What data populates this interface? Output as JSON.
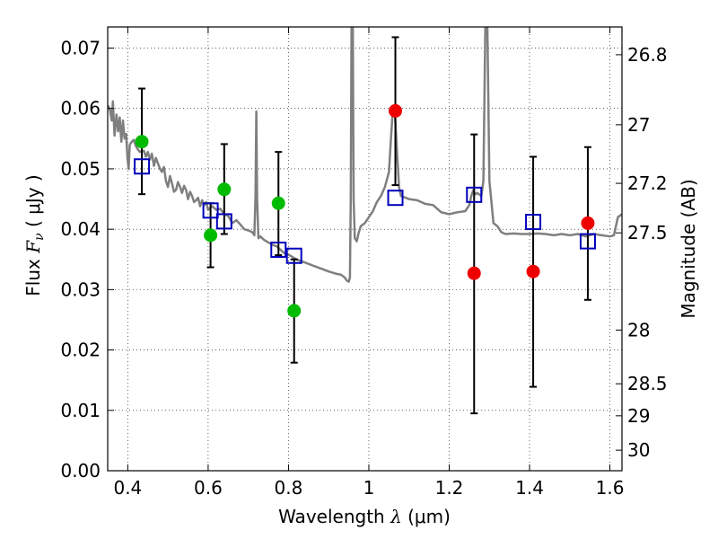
{
  "chart_data": {
    "type": "scatter",
    "xlabel": "Wavelength",
    "xlabel_symbol": "λ",
    "xlabel_unit": "(μm)",
    "ylabel": "Flux",
    "ylabel_symbol": "F",
    "ylabel_symbol_sub": "ν",
    "ylabel_unit": "( μJy )",
    "y2label": "Magnitude (AB)",
    "xlim": [
      0.35,
      1.63
    ],
    "ylim": [
      0.0,
      0.0735
    ],
    "grid": true,
    "grid_style": "dotted",
    "x_ticks": [
      0.4,
      0.6,
      0.8,
      1.0,
      1.2,
      1.4,
      1.6
    ],
    "x_tick_labels": [
      "0.4",
      "0.6",
      "0.8",
      "1",
      "1.2",
      "1.4",
      "1.6"
    ],
    "y_ticks": [
      0.0,
      0.01,
      0.02,
      0.03,
      0.04,
      0.05,
      0.06,
      0.07
    ],
    "y_tick_labels": [
      "0.00",
      "0.01",
      "0.02",
      "0.03",
      "0.04",
      "0.05",
      "0.06",
      "0.07"
    ],
    "y2_ticks": [
      {
        "flux": 0.0689,
        "label": "26.8"
      },
      {
        "flux": 0.0573,
        "label": "27"
      },
      {
        "flux": 0.0476,
        "label": "27.2"
      },
      {
        "flux": 0.0394,
        "label": "27.5"
      },
      {
        "flux": 0.0233,
        "label": "28"
      },
      {
        "flux": 0.0144,
        "label": "28.5"
      },
      {
        "flux": 0.0091,
        "label": "29"
      },
      {
        "flux": 0.0034,
        "label": "30"
      }
    ],
    "colors": {
      "model": "#7f7f7f",
      "green_points": "#00bb00",
      "red_points": "#ee0000",
      "model_squares": "#0000bb",
      "errorbars": "#000000"
    },
    "series": [
      {
        "marker": "circle",
        "color": "#00bb00",
        "points": [
          {
            "x": 0.435,
            "y": 0.0545,
            "err_low": 0.0458,
            "err_high": 0.0633
          },
          {
            "x": 0.606,
            "y": 0.039,
            "err_low": 0.0337,
            "err_high": 0.0443
          },
          {
            "x": 0.64,
            "y": 0.0466,
            "err_low": 0.0392,
            "err_high": 0.0541
          },
          {
            "x": 0.775,
            "y": 0.0443,
            "err_low": 0.0357,
            "err_high": 0.0528
          },
          {
            "x": 0.814,
            "y": 0.0265,
            "err_low": 0.0179,
            "err_high": 0.035
          }
        ]
      },
      {
        "marker": "circle",
        "color": "#ee0000",
        "points": [
          {
            "x": 1.066,
            "y": 0.0596,
            "err_low": 0.0473,
            "err_high": 0.0718
          },
          {
            "x": 1.262,
            "y": 0.0327,
            "err_low": 0.0095,
            "err_high": 0.0557
          },
          {
            "x": 1.409,
            "y": 0.033,
            "err_low": 0.0139,
            "err_high": 0.052
          },
          {
            "x": 1.545,
            "y": 0.041,
            "err_low": 0.0283,
            "err_high": 0.0536
          }
        ]
      },
      {
        "marker": "square",
        "color": "#0000bb",
        "points": [
          {
            "x": 0.435,
            "y": 0.0504
          },
          {
            "x": 0.606,
            "y": 0.0431
          },
          {
            "x": 0.64,
            "y": 0.0413
          },
          {
            "x": 0.775,
            "y": 0.0366
          },
          {
            "x": 0.814,
            "y": 0.0356
          },
          {
            "x": 1.066,
            "y": 0.0452
          },
          {
            "x": 1.262,
            "y": 0.0457
          },
          {
            "x": 1.409,
            "y": 0.0412
          },
          {
            "x": 1.545,
            "y": 0.038
          }
        ]
      },
      {
        "marker": "line",
        "color": "#7f7f7f",
        "points": [
          [
            0.35,
            0.0605
          ],
          [
            0.355,
            0.06
          ],
          [
            0.36,
            0.058
          ],
          [
            0.363,
            0.0612
          ],
          [
            0.367,
            0.0555
          ],
          [
            0.372,
            0.059
          ],
          [
            0.376,
            0.0562
          ],
          [
            0.38,
            0.0585
          ],
          [
            0.384,
            0.0545
          ],
          [
            0.388,
            0.058
          ],
          [
            0.392,
            0.055
          ],
          [
            0.396,
            0.0558
          ],
          [
            0.399,
            0.052
          ],
          [
            0.402,
            0.05
          ],
          [
            0.405,
            0.054
          ],
          [
            0.41,
            0.0545
          ],
          [
            0.415,
            0.0548
          ],
          [
            0.42,
            0.0538
          ],
          [
            0.425,
            0.0532
          ],
          [
            0.43,
            0.0528
          ],
          [
            0.44,
            0.053
          ],
          [
            0.445,
            0.052
          ],
          [
            0.45,
            0.0528
          ],
          [
            0.455,
            0.0515
          ],
          [
            0.46,
            0.0525
          ],
          [
            0.465,
            0.0505
          ],
          [
            0.47,
            0.0518
          ],
          [
            0.48,
            0.05
          ],
          [
            0.485,
            0.0495
          ],
          [
            0.49,
            0.0503
          ],
          [
            0.495,
            0.048
          ],
          [
            0.5,
            0.047
          ],
          [
            0.505,
            0.0488
          ],
          [
            0.51,
            0.0476
          ],
          [
            0.515,
            0.0462
          ],
          [
            0.52,
            0.0465
          ],
          [
            0.525,
            0.0478
          ],
          [
            0.53,
            0.047
          ],
          [
            0.535,
            0.046
          ],
          [
            0.54,
            0.0472
          ],
          [
            0.545,
            0.0465
          ],
          [
            0.55,
            0.045
          ],
          [
            0.555,
            0.0462
          ],
          [
            0.56,
            0.0455
          ],
          [
            0.565,
            0.0445
          ],
          [
            0.57,
            0.0448
          ],
          [
            0.575,
            0.0452
          ],
          [
            0.58,
            0.0438
          ],
          [
            0.585,
            0.0448
          ],
          [
            0.59,
            0.044
          ],
          [
            0.595,
            0.0445
          ],
          [
            0.6,
            0.0432
          ],
          [
            0.61,
            0.0438
          ],
          [
            0.62,
            0.0432
          ],
          [
            0.63,
            0.0434
          ],
          [
            0.64,
            0.0425
          ],
          [
            0.65,
            0.0422
          ],
          [
            0.66,
            0.041
          ],
          [
            0.67,
            0.0415
          ],
          [
            0.68,
            0.0408
          ],
          [
            0.69,
            0.04
          ],
          [
            0.7,
            0.0398
          ],
          [
            0.71,
            0.0395
          ],
          [
            0.715,
            0.039
          ],
          [
            0.718,
            0.0455
          ],
          [
            0.72,
            0.0595
          ],
          [
            0.722,
            0.045
          ],
          [
            0.725,
            0.0385
          ],
          [
            0.73,
            0.0388
          ],
          [
            0.74,
            0.0382
          ],
          [
            0.75,
            0.0378
          ],
          [
            0.76,
            0.0374
          ],
          [
            0.77,
            0.0372
          ],
          [
            0.78,
            0.0366
          ],
          [
            0.79,
            0.036
          ],
          [
            0.8,
            0.0358
          ],
          [
            0.82,
            0.035
          ],
          [
            0.84,
            0.0345
          ],
          [
            0.86,
            0.034
          ],
          [
            0.88,
            0.0335
          ],
          [
            0.9,
            0.033
          ],
          [
            0.92,
            0.0326
          ],
          [
            0.93,
            0.0325
          ],
          [
            0.94,
            0.032
          ],
          [
            0.945,
            0.0315
          ],
          [
            0.95,
            0.0313
          ],
          [
            0.953,
            0.032
          ],
          [
            0.955,
            0.045
          ],
          [
            0.957,
            0.074
          ],
          [
            0.96,
            0.074
          ],
          [
            0.962,
            0.045
          ],
          [
            0.965,
            0.0385
          ],
          [
            0.97,
            0.038
          ],
          [
            0.975,
            0.0395
          ],
          [
            0.98,
            0.0405
          ],
          [
            0.99,
            0.041
          ],
          [
            1.0,
            0.042
          ],
          [
            1.01,
            0.043
          ],
          [
            1.02,
            0.0445
          ],
          [
            1.03,
            0.0455
          ],
          [
            1.04,
            0.047
          ],
          [
            1.05,
            0.0495
          ],
          [
            1.055,
            0.055
          ],
          [
            1.06,
            0.06
          ],
          [
            1.065,
            0.059
          ],
          [
            1.07,
            0.053
          ],
          [
            1.075,
            0.047
          ],
          [
            1.08,
            0.0455
          ],
          [
            1.1,
            0.045
          ],
          [
            1.12,
            0.0448
          ],
          [
            1.14,
            0.0442
          ],
          [
            1.16,
            0.044
          ],
          [
            1.18,
            0.0428
          ],
          [
            1.2,
            0.0425
          ],
          [
            1.22,
            0.0428
          ],
          [
            1.24,
            0.043
          ],
          [
            1.25,
            0.044
          ],
          [
            1.255,
            0.0455
          ],
          [
            1.26,
            0.0465
          ],
          [
            1.265,
            0.0458
          ],
          [
            1.27,
            0.046
          ],
          [
            1.28,
            0.0455
          ],
          [
            1.285,
            0.048
          ],
          [
            1.29,
            0.074
          ],
          [
            1.295,
            0.074
          ],
          [
            1.3,
            0.048
          ],
          [
            1.31,
            0.041
          ],
          [
            1.32,
            0.0405
          ],
          [
            1.33,
            0.0395
          ],
          [
            1.34,
            0.0392
          ],
          [
            1.36,
            0.0393
          ],
          [
            1.38,
            0.0392
          ],
          [
            1.4,
            0.0392
          ],
          [
            1.42,
            0.0393
          ],
          [
            1.44,
            0.0392
          ],
          [
            1.46,
            0.039
          ],
          [
            1.48,
            0.0392
          ],
          [
            1.5,
            0.039
          ],
          [
            1.52,
            0.0392
          ],
          [
            1.54,
            0.0388
          ],
          [
            1.56,
            0.0392
          ],
          [
            1.58,
            0.039
          ],
          [
            1.6,
            0.0388
          ],
          [
            1.61,
            0.039
          ],
          [
            1.62,
            0.042
          ],
          [
            1.63,
            0.0425
          ]
        ]
      }
    ]
  }
}
